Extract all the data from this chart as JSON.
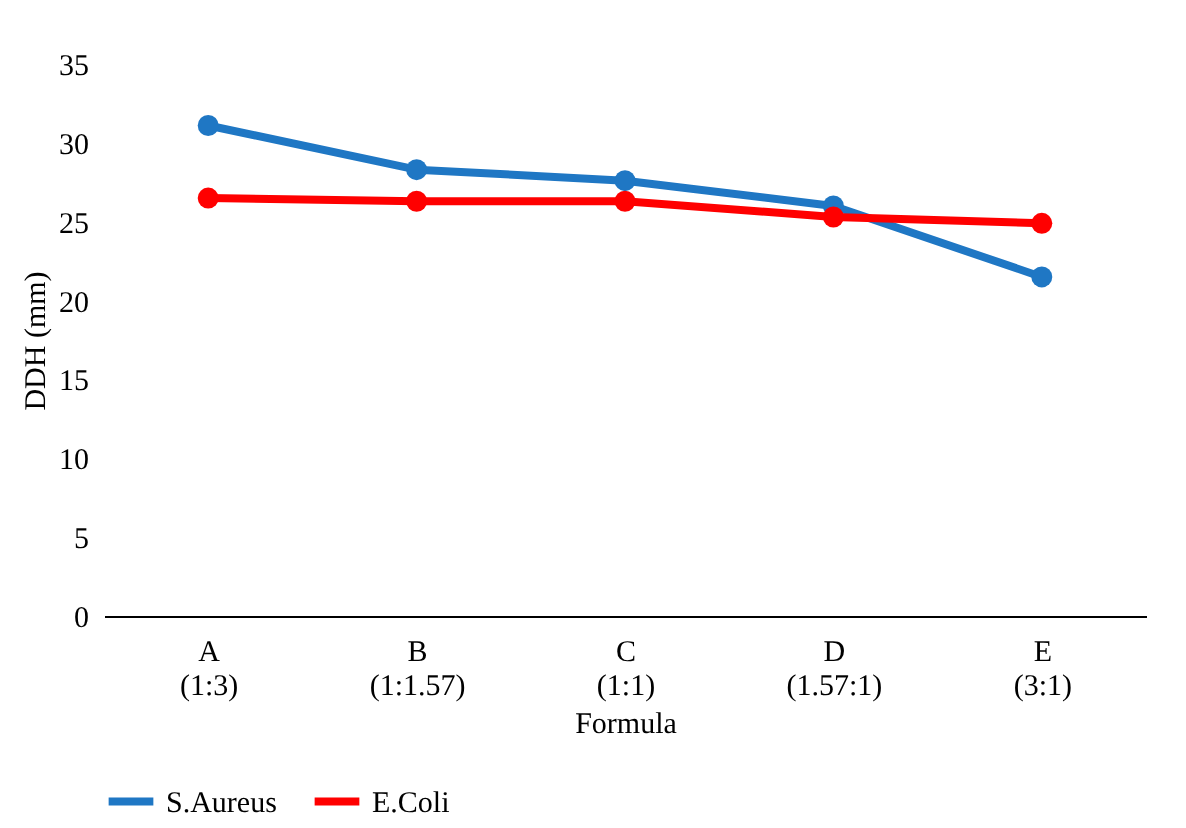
{
  "chart_data": {
    "type": "line",
    "categories": [
      "A\n(1:3)",
      "B\n(1:1.57)",
      "C\n(1:1)",
      "D\n(1.57:1)",
      "E\n(3:1)"
    ],
    "series": [
      {
        "name": "S.Aureus",
        "color": "#1f77c4",
        "values": [
          31.1,
          28.3,
          27.6,
          26.0,
          21.5
        ]
      },
      {
        "name": "E.Coli",
        "color": "#ff0000",
        "values": [
          26.5,
          26.3,
          26.3,
          25.3,
          24.9
        ]
      }
    ],
    "ylabel": "DDH (mm)",
    "xlabel": "Formula",
    "ylim": [
      0,
      35
    ],
    "yticks": [
      0,
      5,
      10,
      15,
      20,
      25,
      30,
      35
    ],
    "marker": "circle",
    "line_style": "solid",
    "legend": "bottom",
    "grid": false
  }
}
